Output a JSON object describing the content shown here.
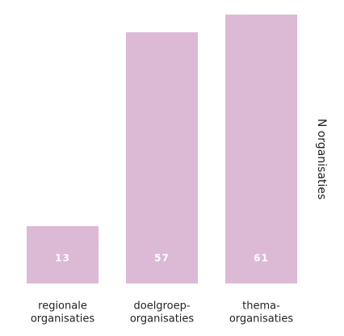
{
  "chart_data": {
    "type": "bar",
    "categories": [
      [
        "regionale",
        "organisaties"
      ],
      [
        "doelgroep-",
        "organisaties"
      ],
      [
        "thema-",
        "organisaties"
      ]
    ],
    "values": [
      13,
      57,
      61
    ],
    "color": "#dcbad5",
    "y_axis_label": "N organisaties"
  }
}
